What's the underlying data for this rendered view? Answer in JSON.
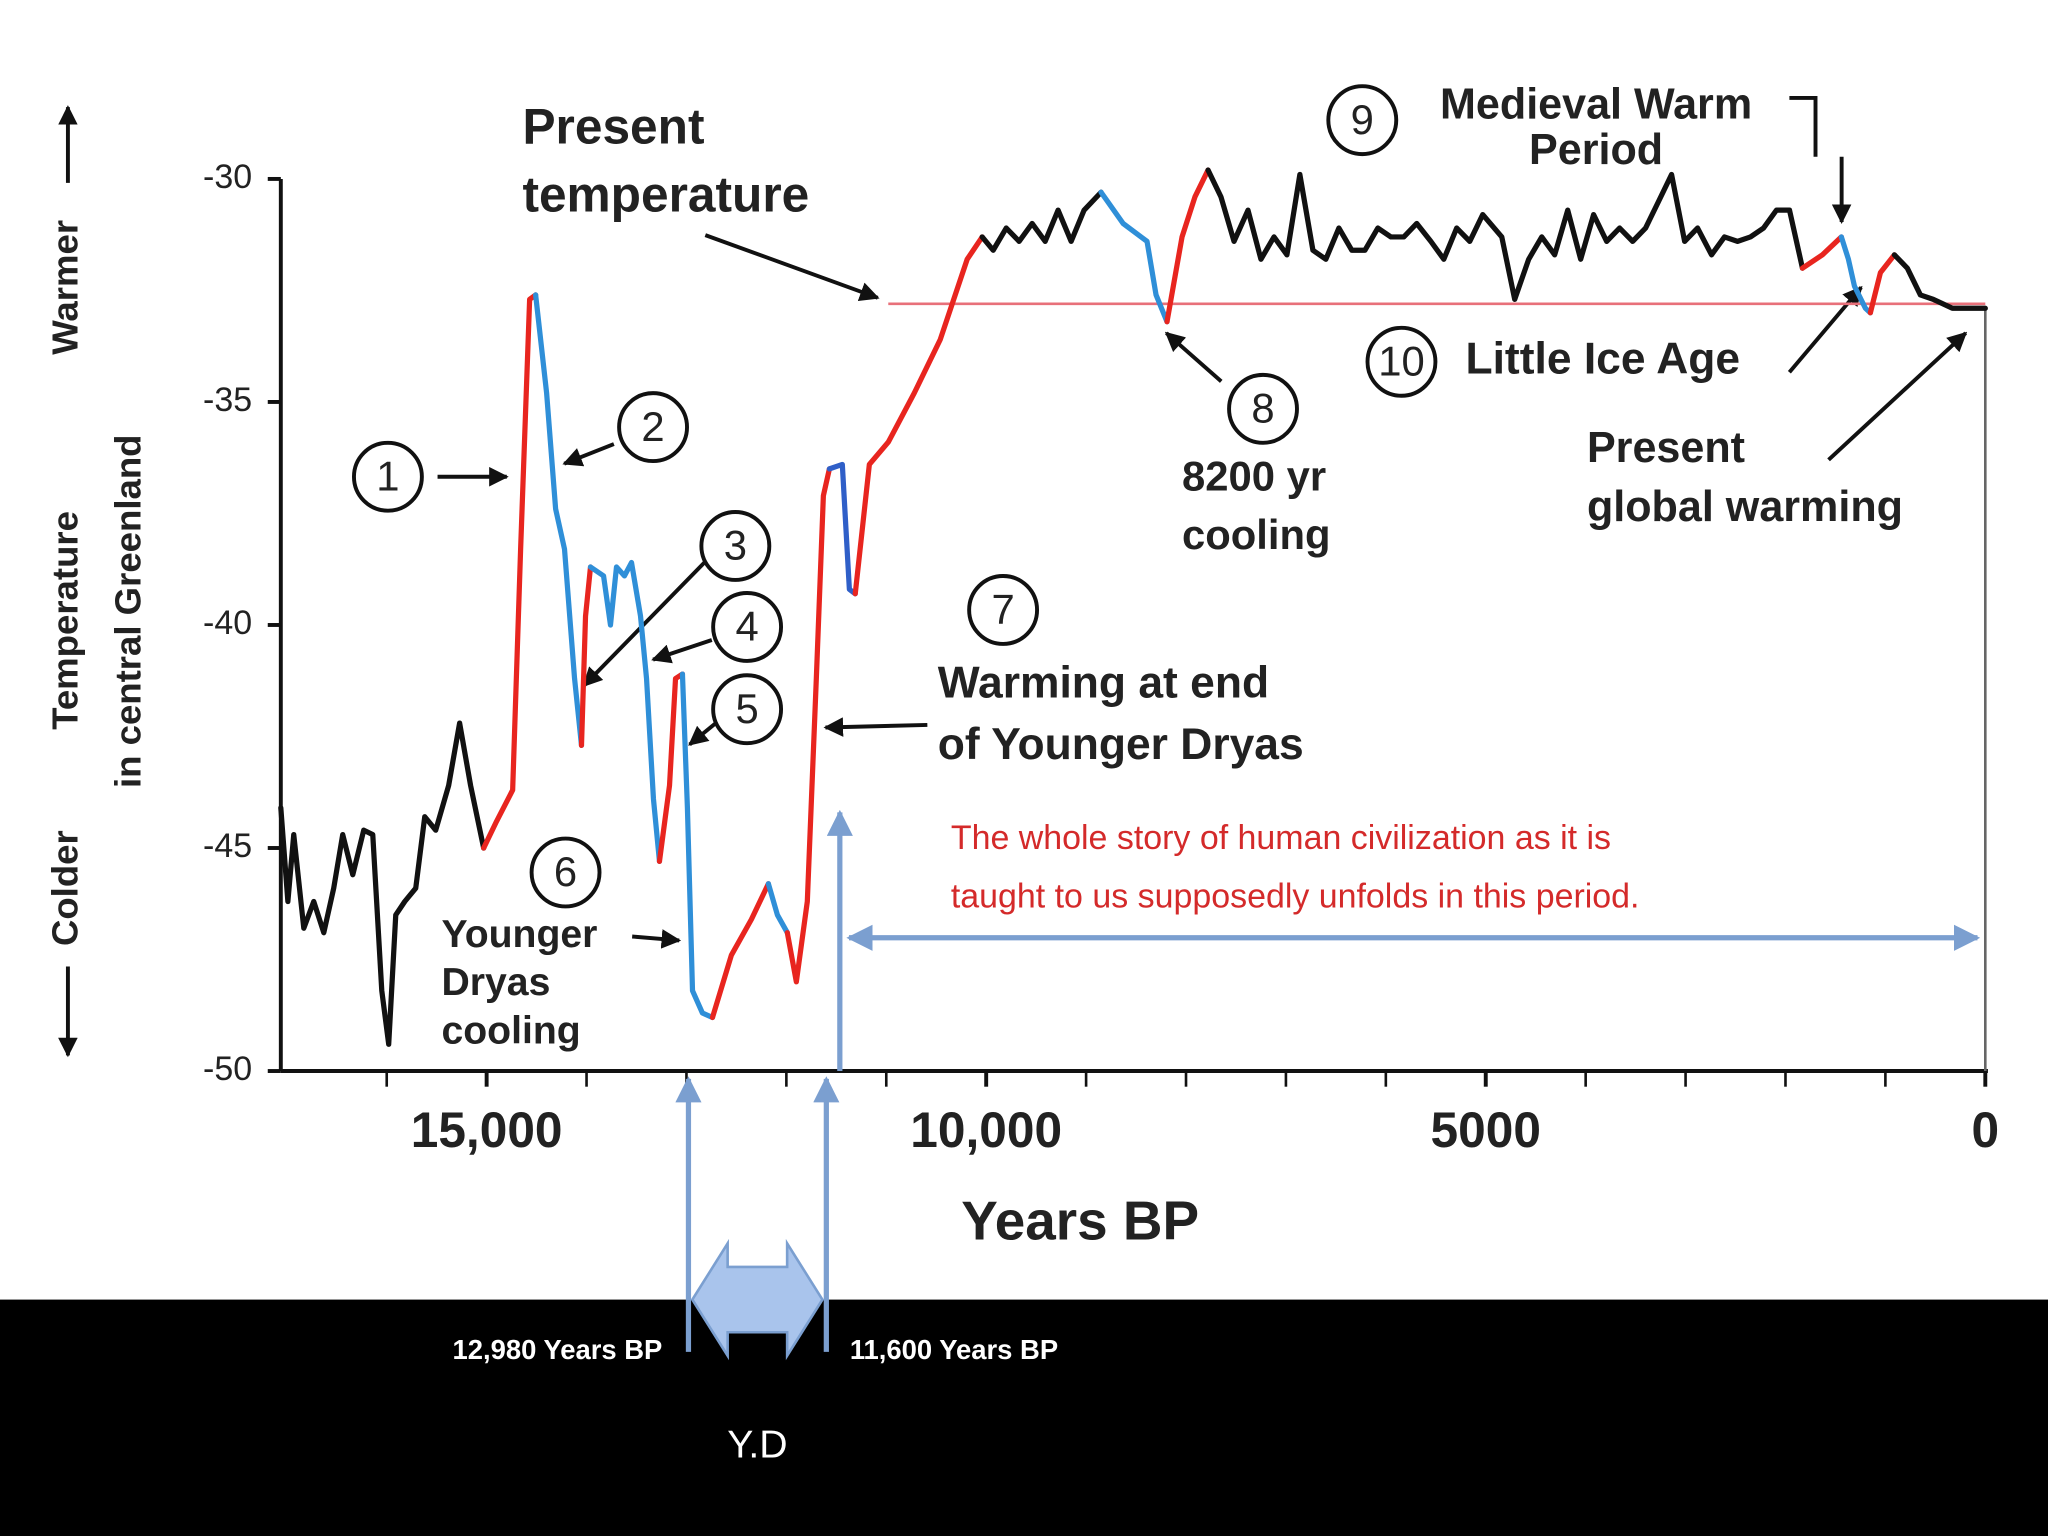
{
  "chart_data": {
    "type": "line",
    "xlim": [
      17060,
      0
    ],
    "ylim": [
      -50,
      -30
    ],
    "xticks": [
      {
        "value": 15000,
        "label": "15,000"
      },
      {
        "value": 10000,
        "label": "10,000"
      },
      5000,
      0
    ],
    "xminorticks": [
      16000,
      14000,
      13000,
      12000,
      11000,
      9000,
      8000,
      7000,
      6000,
      4000,
      3000,
      2000,
      1000
    ],
    "yticks": [
      -30,
      -35,
      -40,
      -45,
      -50
    ],
    "x_label": "Years BP",
    "y_label": [
      "Temperature",
      "in central Greenland"
    ],
    "warmer": "Warmer",
    "colder": "Colder",
    "reference_line": {
      "value": -32.8,
      "x": [
        10980,
        0
      ],
      "color": "#e8707a"
    },
    "series": [
      {
        "color": "#111111",
        "x": [
          17060,
          16990,
          16930,
          16830,
          16730,
          16630,
          16530,
          16440,
          16340,
          16230,
          16140,
          16050,
          15980,
          15910,
          15820,
          15710,
          15620,
          15510,
          15380,
          15270,
          15160,
          15030
        ],
        "values": [
          -44.1,
          -46.2,
          -44.7,
          -46.8,
          -46.2,
          -46.9,
          -45.9,
          -44.7,
          -45.6,
          -44.6,
          -44.7,
          -48.2,
          -49.4,
          -46.5,
          -46.2,
          -45.9,
          -44.3,
          -44.6,
          -43.6,
          -42.2,
          -43.6,
          -45.0
        ]
      },
      {
        "color": "#e8251f",
        "x": [
          15030,
          14900,
          14740,
          14660,
          14570,
          14510
        ],
        "values": [
          -45.0,
          -44.4,
          -43.7,
          -38.3,
          -32.7,
          -32.6
        ]
      },
      {
        "color": "#2f8fd8",
        "x": [
          14510,
          14400,
          14310,
          14220,
          14120,
          14050
        ],
        "values": [
          -32.6,
          -34.8,
          -37.4,
          -38.3,
          -41.2,
          -42.7
        ]
      },
      {
        "color": "#e8251f",
        "x": [
          14050,
          14010,
          13960
        ],
        "values": [
          -42.7,
          -39.8,
          -38.7
        ]
      },
      {
        "color": "#2f8fd8",
        "x": [
          13960,
          13830,
          13760,
          13700,
          13620,
          13550,
          13460,
          13400,
          13330,
          13270
        ],
        "values": [
          -38.7,
          -38.9,
          -40.0,
          -38.7,
          -38.9,
          -38.6,
          -39.8,
          -41.2,
          -43.9,
          -45.3
        ]
      },
      {
        "color": "#e8251f",
        "x": [
          13270,
          13170,
          13110,
          13040
        ],
        "values": [
          -45.3,
          -43.6,
          -41.2,
          -41.1
        ]
      },
      {
        "color": "#2f8fd8",
        "x": [
          13040,
          12990,
          12940,
          12840,
          12740
        ],
        "values": [
          -41.1,
          -44.1,
          -48.2,
          -48.7,
          -48.8
        ]
      },
      {
        "color": "#e8251f",
        "x": [
          12740,
          12550,
          12350,
          12180
        ],
        "values": [
          -48.8,
          -47.4,
          -46.6,
          -45.8
        ]
      },
      {
        "color": "#2f8fd8",
        "x": [
          12180,
          12090,
          11990
        ],
        "values": [
          -45.8,
          -46.5,
          -46.9
        ]
      },
      {
        "color": "#e8251f",
        "x": [
          11990,
          11900,
          11790,
          11700,
          11630,
          11570
        ],
        "values": [
          -46.9,
          -48.0,
          -46.2,
          -41.2,
          -37.1,
          -36.5
        ]
      },
      {
        "color": "#2f5fc8",
        "x": [
          11570,
          11440,
          11370,
          11310
        ],
        "values": [
          -36.5,
          -36.4,
          -39.2,
          -39.3
        ]
      },
      {
        "color": "#e8251f",
        "x": [
          11310,
          11170,
          10980,
          10720,
          10460,
          10190,
          10040
        ],
        "values": [
          -39.3,
          -36.4,
          -35.9,
          -34.8,
          -33.6,
          -31.8,
          -31.3
        ]
      },
      {
        "color": "#111111",
        "x": [
          10040,
          9930,
          9800,
          9670,
          9540,
          9410,
          9280,
          9150,
          9020,
          8850
        ],
        "values": [
          -31.3,
          -31.6,
          -31.1,
          -31.4,
          -31.0,
          -31.4,
          -30.7,
          -31.4,
          -30.7,
          -30.3
        ]
      },
      {
        "color": "#2f8fd8",
        "x": [
          8850,
          8630,
          8390,
          8300,
          8190
        ],
        "values": [
          -30.3,
          -31.0,
          -31.4,
          -32.6,
          -33.2
        ]
      },
      {
        "color": "#e8251f",
        "x": [
          8190,
          8040,
          7910,
          7780
        ],
        "values": [
          -33.2,
          -31.3,
          -30.4,
          -29.8
        ]
      },
      {
        "color": "#111111",
        "x": [
          7780,
          7650,
          7520,
          7380,
          7250,
          7120,
          6990,
          6860,
          6730,
          6600,
          6470,
          6340,
          6210,
          6080,
          5950,
          5820,
          5690,
          5550,
          5420,
          5290,
          5160,
          5030,
          4840,
          4710,
          4570,
          4440,
          4310,
          4180,
          4050,
          3920,
          3790,
          3660,
          3530,
          3400,
          3270,
          3140,
          3010,
          2880,
          2740,
          2610,
          2480,
          2350,
          2220,
          2090,
          1960,
          1830
        ],
        "values": [
          -29.8,
          -30.4,
          -31.4,
          -30.7,
          -31.8,
          -31.3,
          -31.7,
          -29.9,
          -31.6,
          -31.8,
          -31.1,
          -31.6,
          -31.6,
          -31.1,
          -31.3,
          -31.3,
          -31.0,
          -31.4,
          -31.8,
          -31.1,
          -31.4,
          -30.8,
          -31.3,
          -32.7,
          -31.8,
          -31.3,
          -31.7,
          -30.7,
          -31.8,
          -30.8,
          -31.4,
          -31.1,
          -31.4,
          -31.1,
          -30.5,
          -29.9,
          -31.4,
          -31.1,
          -31.7,
          -31.3,
          -31.4,
          -31.3,
          -31.1,
          -30.7,
          -30.7,
          -32.0
        ]
      },
      {
        "color": "#e8251f",
        "x": [
          1830,
          1630,
          1440
        ],
        "values": [
          -32.0,
          -31.7,
          -31.3
        ]
      },
      {
        "color": "#2f8fd8",
        "x": [
          1440,
          1370,
          1310,
          1200,
          1150
        ],
        "values": [
          -31.3,
          -31.8,
          -32.4,
          -32.9,
          -33.0
        ]
      },
      {
        "color": "#e8251f",
        "x": [
          1150,
          1050,
          910
        ],
        "values": [
          -33.0,
          -32.1,
          -31.7
        ]
      },
      {
        "color": "#111111",
        "x": [
          910,
          780,
          650,
          520,
          330,
          130,
          0
        ],
        "values": [
          -31.7,
          -32.0,
          -32.6,
          -32.7,
          -32.9,
          -32.9,
          -32.9
        ]
      }
    ],
    "annotations": [
      {
        "lines": [
          "Present",
          "temperature"
        ]
      },
      {
        "lines": [
          "Medieval Warm",
          "Period"
        ]
      },
      {
        "lines": [
          "Little Ice Age"
        ]
      },
      {
        "lines": [
          "Present",
          "global warming"
        ]
      },
      {
        "lines": [
          "8200 yr",
          "cooling"
        ]
      },
      {
        "lines": [
          "Warming at end",
          "of Younger Dryas"
        ]
      },
      {
        "lines": [
          "Younger",
          "Dryas",
          "cooling"
        ]
      }
    ],
    "markers": [
      "1",
      "2",
      "3",
      "4",
      "5",
      "6",
      "7",
      "8",
      "9",
      "10"
    ],
    "note": {
      "lines": [
        "The whole story of human civilization as it is",
        "taught to us supposedly unfolds in this period."
      ],
      "color": "#d42a2a"
    },
    "younger_dryas": {
      "start": {
        "value": 12980,
        "label": "12,980 Years BP"
      },
      "end": {
        "value": 11600,
        "label": "11,600 Years BP"
      },
      "label": "Y.D"
    }
  }
}
